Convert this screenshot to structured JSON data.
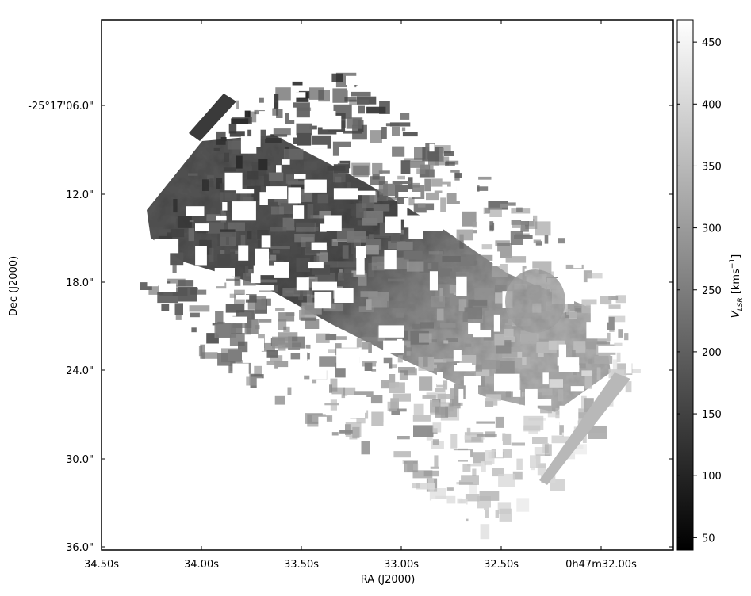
{
  "chart_data": {
    "type": "heatmap",
    "colormap": "grayscale",
    "xlabel": "RA (J2000)",
    "ylabel": "Dec (J2000)",
    "x_ticks": [
      "34.50s",
      "34.00s",
      "33.50s",
      "33.00s",
      "32.50s",
      "0h47m32.00s"
    ],
    "y_ticks": [
      "-25°17'06.0\"",
      "12.0\"",
      "18.0\"",
      "24.0\"",
      "30.0\"",
      "36.0\""
    ],
    "colorbar": {
      "label_main": "V",
      "label_sub": "LSR",
      "label_units": " [kms",
      "label_exp": "−1",
      "label_close": "]",
      "ticks": [
        50,
        100,
        150,
        200,
        250,
        300,
        350,
        400,
        450
      ],
      "range": [
        40,
        468
      ]
    },
    "velocity_field": {
      "gradient_direction": "increasing from upper-left (~150) to lower-right (~300) across the disk",
      "values_range": [
        40,
        468
      ]
    },
    "grid": false
  }
}
